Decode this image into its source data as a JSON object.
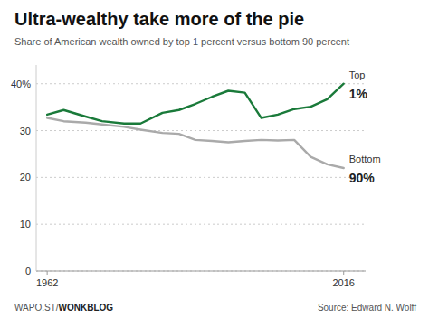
{
  "chart_data": {
    "type": "line",
    "title": "Ultra-wealthy take more of the pie",
    "subtitle": "Share of American wealth owned by top 1 percent versus bottom 90 percent",
    "x": [
      1962,
      1965,
      1969,
      1972,
      1976,
      1979,
      1983,
      1986,
      1989,
      1992,
      1995,
      1998,
      2001,
      2004,
      2007,
      2010,
      2013,
      2016
    ],
    "series": [
      {
        "color": "#1a7a3a",
        "values": [
          33.4,
          34.4,
          33.0,
          32.0,
          31.5,
          31.5,
          33.8,
          34.4,
          35.7,
          37.2,
          38.5,
          38.1,
          32.7,
          33.4,
          34.6,
          35.1,
          36.7,
          40.0
        ]
      },
      {
        "color": "#aaaaaa",
        "values": [
          32.7,
          32.0,
          31.7,
          31.3,
          30.8,
          30.2,
          29.5,
          29.3,
          28.0,
          27.8,
          27.5,
          27.8,
          28.0,
          27.9,
          28.0,
          24.4,
          22.8,
          22.0
        ]
      }
    ],
    "annotations": [
      "Top",
      "1%",
      "Bottom",
      "90%"
    ],
    "xlim": [
      1960,
      2020
    ],
    "xticks": [
      1962,
      2016
    ],
    "ylim": [
      0,
      44
    ],
    "yticks": [
      0,
      10,
      20,
      30,
      {
        "value": 40,
        "label": "40%"
      }
    ],
    "grid": true,
    "footer": "WAPO.ST/",
    "footer_bold": "WONKBLOG",
    "source": "Source: Edward N. Wolff"
  }
}
